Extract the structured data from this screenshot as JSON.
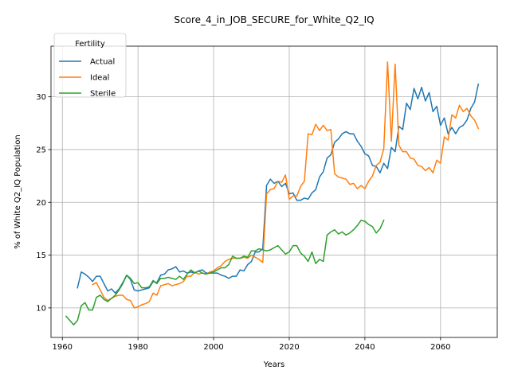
{
  "chart_data": {
    "type": "line",
    "title": "Score_4_in_JOB_SECURE_for_White_Q2_IQ",
    "xlabel": "Years",
    "ylabel": "% of White Q2_IQ Population",
    "xlim": [
      1957,
      2075
    ],
    "ylim": [
      7.2,
      34.8
    ],
    "xticks": [
      1960,
      1980,
      2000,
      2020,
      2040,
      2060
    ],
    "yticks": [
      10,
      15,
      20,
      25,
      30
    ],
    "grid": true,
    "legend": {
      "title": "Fertility",
      "position": "top-left"
    },
    "series": [
      {
        "name": "Actual",
        "color": "#1f77b4",
        "x": [
          1964,
          1965,
          1966,
          1967,
          1968,
          1969,
          1970,
          1971,
          1972,
          1973,
          1974,
          1975,
          1976,
          1977,
          1978,
          1979,
          1980,
          1981,
          1982,
          1983,
          1984,
          1985,
          1986,
          1987,
          1988,
          1989,
          1990,
          1991,
          1992,
          1993,
          1994,
          1995,
          1996,
          1997,
          1998,
          1999,
          2000,
          2001,
          2002,
          2003,
          2004,
          2005,
          2006,
          2007,
          2008,
          2009,
          2010,
          2011,
          2012,
          2013,
          2014,
          2015,
          2016,
          2017,
          2018,
          2019,
          2020,
          2021,
          2022,
          2023,
          2024,
          2025,
          2026,
          2027,
          2028,
          2029,
          2030,
          2031,
          2032,
          2033,
          2034,
          2035,
          2036,
          2037,
          2038,
          2039,
          2040,
          2041,
          2042,
          2043,
          2044,
          2045,
          2046,
          2047,
          2048,
          2049,
          2050,
          2051,
          2052,
          2053,
          2054,
          2055,
          2056,
          2057,
          2058,
          2059,
          2060,
          2061,
          2062,
          2063,
          2064,
          2065,
          2066,
          2067,
          2068,
          2069,
          2070
        ],
        "y": [
          11.9,
          13.4,
          13.2,
          12.9,
          12.5,
          13.0,
          13.0,
          12.3,
          11.6,
          11.8,
          11.4,
          11.8,
          12.4,
          13.1,
          12.7,
          11.7,
          11.6,
          11.7,
          11.8,
          11.9,
          12.5,
          12.4,
          13.1,
          13.2,
          13.6,
          13.7,
          13.9,
          13.4,
          13.5,
          13.3,
          13.4,
          13.3,
          13.5,
          13.6,
          13.3,
          13.3,
          13.3,
          13.3,
          13.1,
          13.0,
          12.8,
          13.0,
          13.0,
          13.6,
          13.5,
          14.1,
          14.4,
          15.3,
          15.3,
          15.6,
          21.6,
          22.2,
          21.8,
          22.0,
          21.5,
          21.8,
          20.8,
          20.9,
          20.2,
          20.2,
          20.4,
          20.3,
          20.9,
          21.2,
          22.4,
          22.9,
          24.2,
          24.5,
          25.7,
          26.0,
          26.5,
          26.7,
          26.5,
          26.5,
          25.8,
          25.3,
          24.6,
          24.4,
          23.5,
          23.4,
          22.8,
          23.7,
          23.2,
          25.2,
          24.8,
          27.2,
          26.9,
          29.4,
          28.8,
          30.8,
          29.8,
          30.9,
          29.6,
          30.4,
          28.6,
          29.1,
          27.3,
          28.0,
          26.5,
          27.1,
          26.5,
          27.1,
          27.3,
          27.8,
          28.9,
          29.5,
          31.2
        ]
      },
      {
        "name": "Ideal",
        "color": "#ff7f0e",
        "x": [
          1968,
          1969,
          1970,
          1971,
          1972,
          1973,
          1974,
          1975,
          1976,
          1977,
          1978,
          1979,
          1980,
          1981,
          1982,
          1983,
          1984,
          1985,
          1986,
          1987,
          1988,
          1989,
          1990,
          1991,
          1992,
          1993,
          1994,
          1995,
          1996,
          1997,
          1998,
          1999,
          2000,
          2001,
          2002,
          2003,
          2004,
          2005,
          2006,
          2007,
          2008,
          2009,
          2010,
          2011,
          2012,
          2013,
          2014,
          2015,
          2016,
          2017,
          2018,
          2019,
          2020,
          2021,
          2022,
          2023,
          2024,
          2025,
          2026,
          2027,
          2028,
          2029,
          2030,
          2031,
          2032,
          2033,
          2034,
          2035,
          2036,
          2037,
          2038,
          2039,
          2040,
          2041,
          2042,
          2043,
          2044,
          2045,
          2046,
          2047,
          2048,
          2049,
          2050,
          2051,
          2052,
          2053,
          2054,
          2055,
          2056,
          2057,
          2058,
          2059,
          2060,
          2061,
          2062,
          2063,
          2064,
          2065,
          2066,
          2067,
          2068,
          2069,
          2070
        ],
        "y": [
          12.2,
          12.4,
          11.7,
          11.0,
          10.7,
          10.9,
          11.1,
          11.2,
          11.2,
          10.8,
          10.7,
          10.0,
          10.1,
          10.3,
          10.4,
          10.6,
          11.4,
          11.2,
          12.1,
          12.2,
          12.3,
          12.1,
          12.2,
          12.3,
          12.5,
          13.0,
          13.0,
          13.4,
          13.2,
          13.3,
          13.2,
          13.4,
          13.5,
          13.8,
          14.0,
          14.4,
          14.6,
          14.7,
          14.7,
          14.7,
          14.8,
          14.7,
          15.0,
          14.8,
          14.6,
          14.3,
          20.8,
          21.2,
          21.3,
          22.0,
          21.9,
          22.6,
          20.3,
          20.6,
          20.6,
          21.5,
          22.0,
          26.5,
          26.4,
          27.4,
          26.8,
          27.3,
          26.8,
          26.9,
          22.7,
          22.4,
          22.3,
          22.2,
          21.7,
          21.8,
          21.3,
          21.6,
          21.3,
          22.0,
          22.5,
          23.5,
          23.8,
          25.1,
          33.3,
          25.8,
          33.1,
          25.4,
          24.8,
          24.8,
          24.2,
          24.1,
          23.5,
          23.4,
          23.0,
          23.3,
          22.8,
          24.0,
          23.7,
          26.2,
          25.9,
          28.3,
          28.0,
          29.2,
          28.6,
          28.9,
          28.2,
          27.8,
          27.0
        ]
      },
      {
        "name": "Sterile",
        "color": "#2ca02c",
        "x": [
          1961,
          1962,
          1963,
          1964,
          1965,
          1966,
          1967,
          1968,
          1969,
          1970,
          1971,
          1972,
          1973,
          1974,
          1975,
          1976,
          1977,
          1978,
          1979,
          1980,
          1981,
          1982,
          1983,
          1984,
          1985,
          1986,
          1987,
          1988,
          1989,
          1990,
          1991,
          1992,
          1993,
          1994,
          1995,
          1996,
          1997,
          1998,
          1999,
          2000,
          2001,
          2002,
          2003,
          2004,
          2005,
          2006,
          2007,
          2008,
          2009,
          2010,
          2011,
          2012,
          2013,
          2014,
          2015,
          2016,
          2017,
          2018,
          2019,
          2020,
          2021,
          2022,
          2023,
          2024,
          2025,
          2026,
          2027,
          2028,
          2029,
          2030,
          2031,
          2032,
          2033,
          2034,
          2035,
          2036,
          2037,
          2038,
          2039,
          2040,
          2041,
          2042,
          2043,
          2044,
          2045
        ],
        "y": [
          9.2,
          8.8,
          8.4,
          8.8,
          10.2,
          10.5,
          9.8,
          9.8,
          11.0,
          11.2,
          10.8,
          10.6,
          10.9,
          11.2,
          11.7,
          12.3,
          13.1,
          12.8,
          12.3,
          12.4,
          11.9,
          11.9,
          12.0,
          12.6,
          12.3,
          12.8,
          12.8,
          12.9,
          12.8,
          12.7,
          13.0,
          12.7,
          13.2,
          13.6,
          13.3,
          13.5,
          13.3,
          13.2,
          13.3,
          13.4,
          13.6,
          13.8,
          13.8,
          14.1,
          14.9,
          14.7,
          14.7,
          14.9,
          14.8,
          15.4,
          15.4,
          15.6,
          15.5,
          15.4,
          15.5,
          15.7,
          15.9,
          15.5,
          15.1,
          15.3,
          15.9,
          15.9,
          15.2,
          14.9,
          14.4,
          15.3,
          14.2,
          14.6,
          14.4,
          16.9,
          17.2,
          17.4,
          17.0,
          17.2,
          16.9,
          17.1,
          17.4,
          17.8,
          18.3,
          18.2,
          17.9,
          17.7,
          17.1,
          17.5,
          18.3
        ]
      }
    ]
  }
}
